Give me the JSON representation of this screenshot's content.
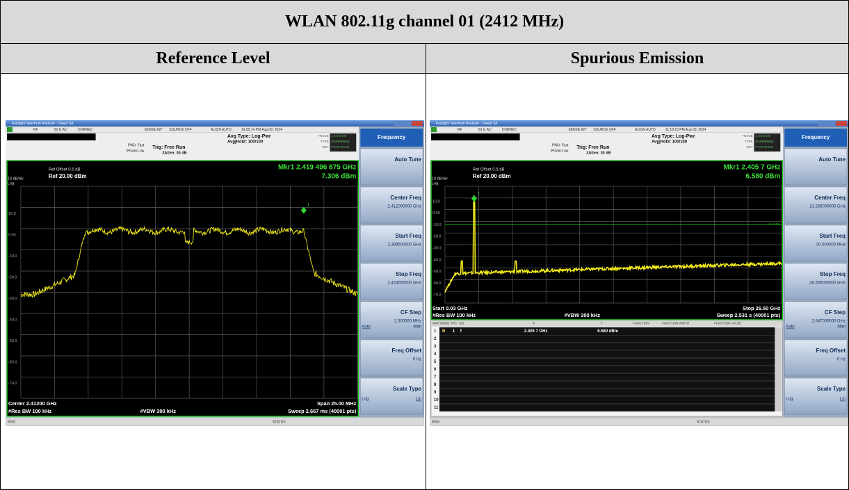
{
  "table": {
    "title": "WLAN 802.11g channel 01 (2412 MHz)",
    "headers": [
      "Reference Level",
      "Spurious Emission"
    ]
  },
  "screens": [
    {
      "window_title": "Keysight Spectrum Analyzer - Swept SA",
      "status": [
        "RF",
        "50 Ω  AC",
        "CORREC",
        "SENSE:INT",
        "SOURCE OFF",
        "ALIGN AUTO",
        "10:05:14 PM Aug 09, 2024"
      ],
      "settings": [
        "PNO: Fast",
        "IFGain:Low",
        "Trig: Free Run",
        "#Atten: 30 dB",
        "Avg Type: Log-Pwr",
        "Avg|Hold: 100/100"
      ],
      "trace_labels": [
        "TRACE",
        "TYPE",
        "DET"
      ],
      "trace_values": [
        "1 2 3 4 5 6",
        "M WWWWW",
        "P N N N N N"
      ],
      "ref_offset": "Ref Offset 0.5 dB",
      "ref_level": "Ref 20.00 dBm",
      "scale": "10 dB/div",
      "scale_type": "Log",
      "marker_freq": "Mkr1 2.419 496 875 GHz",
      "marker_level": "7.306 dBm",
      "marker_id": "1",
      "y_labels": [
        "10.0",
        "0.00",
        "-10.0",
        "-20.0",
        "-30.0",
        "-40.0",
        "-50.0",
        "-60.0",
        "-70.0"
      ],
      "footer": [
        "Center 2.41200 GHz",
        "Span 25.00 MHz",
        "#Res BW 100 kHz",
        "#VBW 300 kHz",
        "Sweep  2.667 ms (40001 pts)"
      ],
      "softkeys": {
        "menu": "Frequency",
        "keys": [
          {
            "label": "Auto Tune"
          },
          {
            "label": "Center Freq",
            "value": "2.412000000 GHz"
          },
          {
            "label": "Start Freq",
            "value": "2.399500000 GHz"
          },
          {
            "label": "Stop Freq",
            "value": "2.424500000 GHz"
          },
          {
            "label": "CF Step",
            "value": "2.500000 MHz",
            "options": [
              "Auto",
              "Man"
            ]
          },
          {
            "label": "Freq Offset",
            "value": "0 Hz"
          },
          {
            "label": "Scale Type",
            "options": [
              "Log",
              "Lin"
            ]
          }
        ]
      },
      "msg": "MSG",
      "status_bar": "STATUS"
    },
    {
      "window_title": "Keysight Spectrum Analyzer - Swept SA",
      "status": [
        "RF",
        "50 Ω  AC",
        "CORREC",
        "SENSE:INT",
        "SOURCE OFF",
        "ALIGN AUTO",
        "11:18:15 PM Aug 09, 2024"
      ],
      "settings": [
        "PNO: Fast",
        "IFGain:Low",
        "Trig: Free Run",
        "#Atten: 30 dB",
        "Avg Type: Log-Pwr",
        "Avg|Hold: 100/100"
      ],
      "trace_labels": [
        "TRACE",
        "TYPE",
        "DET"
      ],
      "trace_values": [
        "1 2 3 4 5 6",
        "M WWWWW",
        "P N N N N N"
      ],
      "ref_offset": "Ref Offset 0.5 dB",
      "ref_level": "Ref 20.00 dBm",
      "scale": "10 dB/div",
      "scale_type": "Log",
      "marker_freq": "Mkr1 2.405 7 GHz",
      "marker_level": "6.580 dBm",
      "marker_id": "1",
      "display_line": "-13.00 dBm",
      "y_labels": [
        "10.0",
        "0.00",
        "-10.0",
        "-20.0",
        "-30.0",
        "-40.0",
        "-50.0",
        "-60.0",
        "-70.0"
      ],
      "footer": [
        "Start 0.03 GHz",
        "Stop 26.50 GHz",
        "#Res BW 100 kHz",
        "#VBW 300 kHz",
        "Sweep  2.531 s (40001 pts)"
      ],
      "marker_table": {
        "headers": [
          "MKR",
          "MODE",
          "TRC",
          "SCL",
          "X",
          "Y",
          "FUNCTION",
          "FUNCTION WIDTH",
          "FUNCTION VALUE"
        ],
        "rows": [
          [
            "1",
            "N",
            "1",
            "f",
            "2.405 7 GHz",
            "6.580 dBm"
          ],
          [
            "2"
          ],
          [
            "3"
          ],
          [
            "4"
          ],
          [
            "5"
          ],
          [
            "6"
          ],
          [
            "7"
          ],
          [
            "8"
          ],
          [
            "9"
          ],
          [
            "10"
          ],
          [
            "11"
          ]
        ]
      },
      "softkeys": {
        "menu": "Frequency",
        "keys": [
          {
            "label": "Auto Tune"
          },
          {
            "label": "Center Freq",
            "value": "13.265000000 GHz"
          },
          {
            "label": "Start Freq",
            "value": "30.000000 MHz"
          },
          {
            "label": "Stop Freq",
            "value": "26.500000000 GHz"
          },
          {
            "label": "CF Step",
            "value": "2.647000000 GHz",
            "options": [
              "Auto",
              "Man"
            ]
          },
          {
            "label": "Freq Offset",
            "value": "0 Hz"
          },
          {
            "label": "Scale Type",
            "options": [
              "Log",
              "Lin"
            ]
          }
        ]
      },
      "msg": "MSG",
      "status_bar": "STATUS"
    }
  ]
}
